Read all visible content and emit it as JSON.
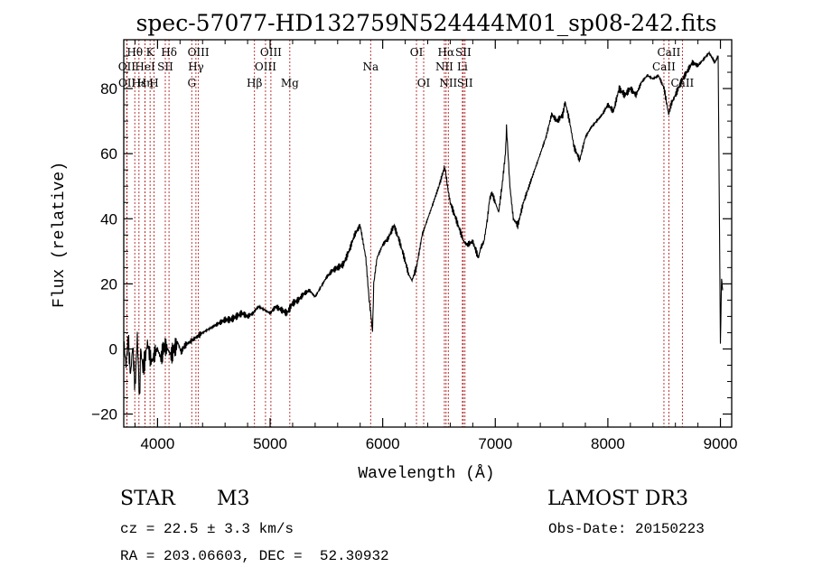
{
  "chart_data": {
    "type": "line",
    "title": "spec-57077-HD132759N524444M01_sp08-242.fits",
    "xlabel": "Wavelength (Å)",
    "ylabel": "Flux (relative)",
    "xlim": [
      3700,
      9100
    ],
    "ylim": [
      -24,
      95
    ],
    "x_ticks": [
      4000,
      5000,
      6000,
      7000,
      8000,
      9000
    ],
    "x_tick_labels": [
      "4000",
      "5000",
      "6000",
      "7000",
      "8000",
      "9000"
    ],
    "y_ticks": [
      -20,
      0,
      20,
      40,
      60,
      80
    ],
    "y_tick_labels": [
      "−20",
      "0",
      "20",
      "40",
      "60",
      "80"
    ],
    "series": [
      {
        "name": "spectrum",
        "x": [
          3700,
          3720,
          3740,
          3760,
          3780,
          3800,
          3820,
          3840,
          3850,
          3870,
          3890,
          3910,
          3930,
          3950,
          3980,
          4000,
          4030,
          4060,
          4090,
          4120,
          4150,
          4180,
          4210,
          4240,
          4280,
          4320,
          4360,
          4400,
          4450,
          4500,
          4550,
          4600,
          4650,
          4700,
          4750,
          4800,
          4850,
          4870,
          4900,
          4950,
          5000,
          5050,
          5100,
          5150,
          5200,
          5250,
          5300,
          5350,
          5400,
          5450,
          5500,
          5550,
          5600,
          5650,
          5700,
          5750,
          5800,
          5850,
          5880,
          5900,
          5910,
          5920,
          5950,
          6000,
          6050,
          6100,
          6150,
          6200,
          6230,
          6260,
          6300,
          6350,
          6400,
          6450,
          6500,
          6550,
          6560,
          6580,
          6600,
          6650,
          6700,
          6720,
          6750,
          6800,
          6830,
          6850,
          6870,
          6900,
          6930,
          6950,
          6970,
          7000,
          7030,
          7060,
          7090,
          7100,
          7130,
          7160,
          7200,
          7250,
          7300,
          7350,
          7400,
          7450,
          7500,
          7550,
          7600,
          7620,
          7640,
          7660,
          7700,
          7750,
          7800,
          7850,
          7900,
          7950,
          8000,
          8050,
          8100,
          8150,
          8200,
          8250,
          8300,
          8350,
          8400,
          8450,
          8500,
          8520,
          8540,
          8560,
          8600,
          8650,
          8700,
          8750,
          8800,
          8850,
          8900,
          8950,
          8980,
          9000,
          9010,
          9020
        ],
        "y": [
          2,
          -5,
          3,
          -8,
          1,
          -12,
          4,
          -16,
          0,
          -6,
          -3,
          2,
          -2,
          -4,
          -1,
          0,
          -3,
          1,
          0,
          -2,
          0,
          2,
          -1,
          1,
          2,
          3,
          4,
          5,
          6,
          7,
          8,
          9,
          9,
          10,
          11,
          10,
          11,
          12,
          13,
          12,
          11,
          13,
          12,
          11,
          14,
          15,
          17,
          18,
          16,
          19,
          22,
          24,
          25,
          26,
          30,
          35,
          38,
          28,
          15,
          9,
          5,
          20,
          28,
          32,
          34,
          38,
          33,
          27,
          23,
          21,
          25,
          35,
          40,
          45,
          50,
          56,
          54,
          49,
          45,
          40,
          35,
          33,
          32,
          33,
          30,
          28,
          31,
          33,
          40,
          46,
          48,
          45,
          42,
          50,
          60,
          68,
          50,
          40,
          38,
          45,
          50,
          55,
          60,
          65,
          72,
          70,
          72,
          76,
          73,
          70,
          62,
          58,
          65,
          68,
          70,
          72,
          75,
          73,
          80,
          78,
          80,
          78,
          82,
          84,
          83,
          84,
          80,
          76,
          72,
          75,
          78,
          82,
          85,
          88,
          87,
          89,
          91,
          88,
          90,
          2,
          22,
          18
        ]
      }
    ],
    "line_markers": [
      {
        "label": "Hθ",
        "wavelength": 3798,
        "row": 1
      },
      {
        "label": "OII",
        "wavelength": 3727,
        "row": 2
      },
      {
        "label": "OII",
        "wavelength": 3729,
        "row": 3
      },
      {
        "label": "Hε",
        "wavelength": 3835,
        "row": 3
      },
      {
        "label": "K",
        "wavelength": 3934,
        "row": 1
      },
      {
        "label": "HeI",
        "wavelength": 3889,
        "row": 2
      },
      {
        "label": "Hη",
        "wavelength": 3889,
        "row": 3
      },
      {
        "label": "H",
        "wavelength": 3969,
        "row": 3
      },
      {
        "label": "Hδ",
        "wavelength": 4102,
        "row": 1
      },
      {
        "label": "SII",
        "wavelength": 4069,
        "row": 2
      },
      {
        "label": "OIII",
        "wavelength": 4363,
        "row": 1
      },
      {
        "label": "Hγ",
        "wavelength": 4341,
        "row": 2
      },
      {
        "label": "G",
        "wavelength": 4304,
        "row": 3
      },
      {
        "label": "OIII",
        "wavelength": 5007,
        "row": 1
      },
      {
        "label": "OIII",
        "wavelength": 4959,
        "row": 2
      },
      {
        "label": "Hβ",
        "wavelength": 4861,
        "row": 3
      },
      {
        "label": "Mg",
        "wavelength": 5175,
        "row": 3
      },
      {
        "label": "Na",
        "wavelength": 5893,
        "row": 2
      },
      {
        "label": "OI",
        "wavelength": 6300,
        "row": 1
      },
      {
        "label": "OI",
        "wavelength": 6364,
        "row": 3
      },
      {
        "label": "Hα",
        "wavelength": 6563,
        "row": 1
      },
      {
        "label": "SII",
        "wavelength": 6716,
        "row": 1
      },
      {
        "label": "NII",
        "wavelength": 6548,
        "row": 2
      },
      {
        "label": "Li",
        "wavelength": 6708,
        "row": 2
      },
      {
        "label": "NII",
        "wavelength": 6583,
        "row": 3
      },
      {
        "label": "SII",
        "wavelength": 6731,
        "row": 3
      },
      {
        "label": "CaII",
        "wavelength": 8542,
        "row": 1
      },
      {
        "label": "CaII",
        "wavelength": 8498,
        "row": 2
      },
      {
        "label": "CaII",
        "wavelength": 8662,
        "row": 3
      }
    ]
  },
  "info": {
    "object_class": "STAR",
    "subclass": "M3",
    "survey": "LAMOST DR3",
    "cz": "cz = 22.5 ± 3.3 km/s",
    "obs_date": "Obs-Date: 20150223",
    "coords": "RA = 203.06603, DEC =  52.30932"
  },
  "colors": {
    "line": "#000000",
    "marker": "#b22222",
    "axis": "#000000"
  }
}
